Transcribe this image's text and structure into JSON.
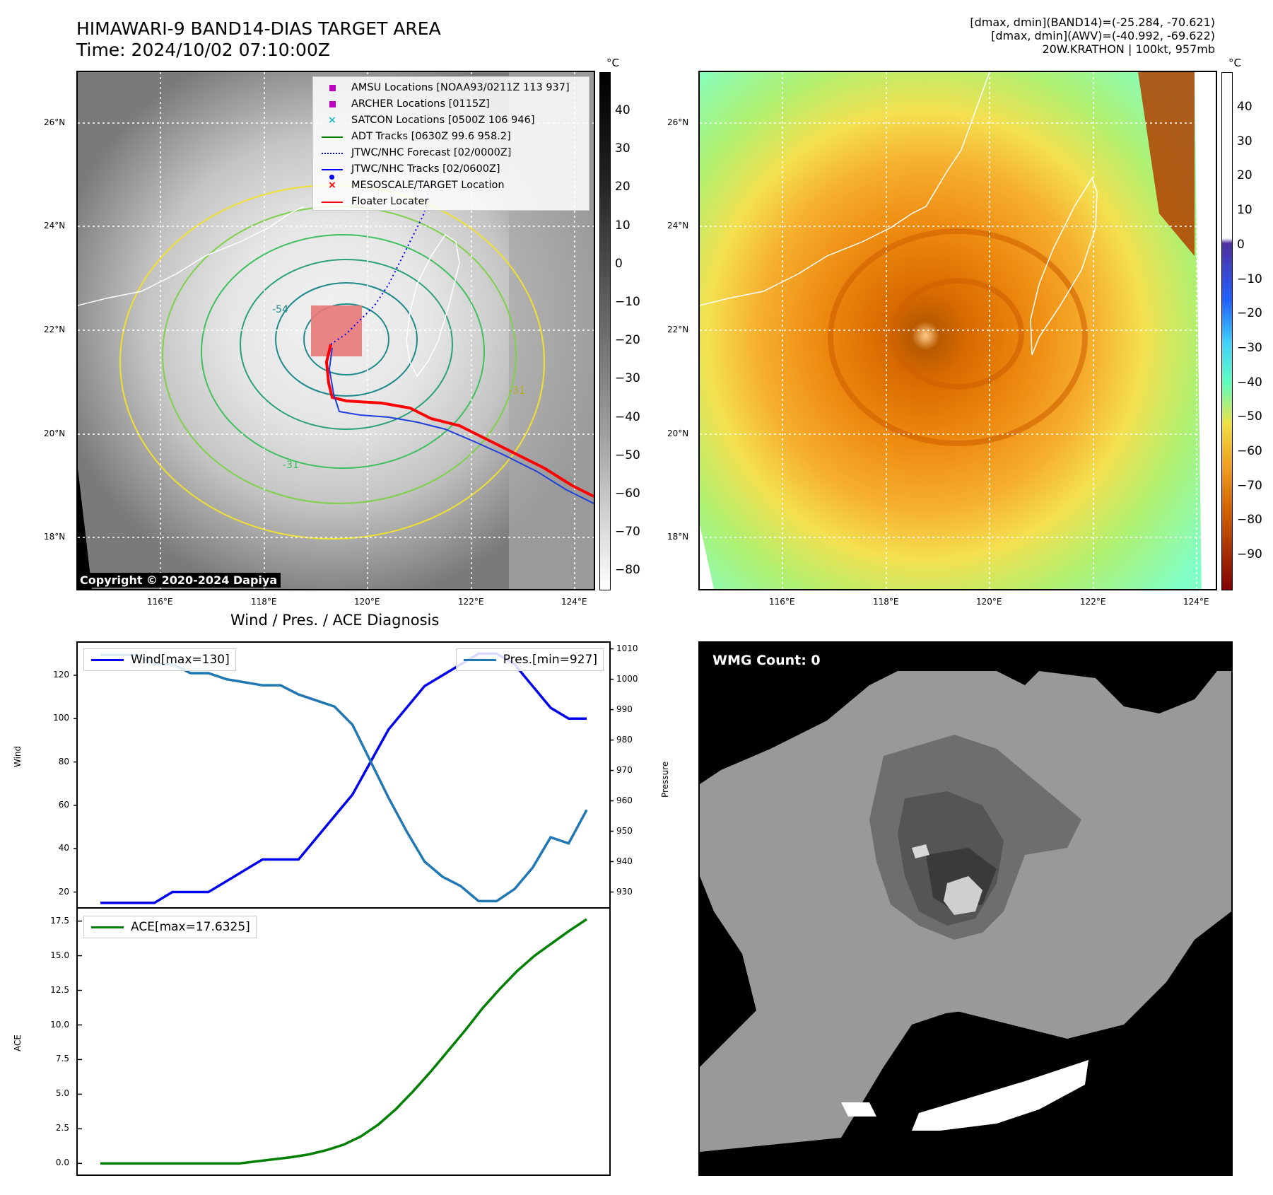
{
  "header": {
    "title_line1": "HIMAWARI-9 BAND14-DIAS TARGET AREA",
    "title_line2": "Time: 2024/10/02 07:10:00Z",
    "info_line1": "[dmax, dmin](BAND14)=(-25.284, -70.621)",
    "info_line2": "[dmax, dmin](AWV)=(-40.992, -69.622)",
    "info_line3": "20W.KRATHON | 100kt, 957mb"
  },
  "map_axes": {
    "lat_labels": [
      "26°N",
      "24°N",
      "22°N",
      "20°N",
      "18°N"
    ],
    "lon_labels": [
      "116°E",
      "118°E",
      "120°E",
      "122°E",
      "124°E"
    ],
    "unit": "°C"
  },
  "ir_panel": {
    "colormap": "grayscale",
    "colorbar_ticks": [
      "40",
      "30",
      "20",
      "10",
      "0",
      "−10",
      "−20",
      "−30",
      "−40",
      "−50",
      "−60",
      "−70",
      "−80"
    ],
    "contour_labels": [
      "-54",
      "-31"
    ],
    "copyright": "Copyright © 2020-2024 Dapiya",
    "legend": [
      {
        "label": "AMSU Locations [NOAA93/0211Z 113 937]",
        "symbol": "square",
        "color": "#c000c0"
      },
      {
        "label": "ARCHER Locations [0115Z]",
        "symbol": "square",
        "color": "#c000c0"
      },
      {
        "label": "SATCON Locations [0500Z 106 946]",
        "symbol": "x",
        "color": "#20b8c0"
      },
      {
        "label": "ADT Tracks [0630Z 99.6 958.2]",
        "symbol": "line",
        "color": "#008000"
      },
      {
        "label": "JTWC/NHC Forecast [02/0000Z]",
        "symbol": "dotted",
        "color": "#0000ff"
      },
      {
        "label": "JTWC/NHC Tracks [02/0600Z]",
        "symbol": "line-dot",
        "color": "#0000ff"
      },
      {
        "label": "MESOSCALE/TARGET Location",
        "symbol": "x",
        "color": "#ff0000"
      },
      {
        "label": "Floater Locater",
        "symbol": "line",
        "color": "#ff0000"
      }
    ]
  },
  "color_panel": {
    "colormap": "thermal",
    "colorbar_ticks": [
      "40",
      "30",
      "20",
      "10",
      "0",
      "−10",
      "−20",
      "−30",
      "−40",
      "−50",
      "−60",
      "−70",
      "−80",
      "−90"
    ]
  },
  "wmg_panel": {
    "label": "WMG Count: 0"
  },
  "chart_data": [
    {
      "type": "line",
      "title": "Wind / Pres. / ACE Diagnosis",
      "ylabel": "Wind",
      "y2label": "Pressure",
      "ylim": [
        13,
        135
      ],
      "y2lim": [
        925,
        1012
      ],
      "yticks": [
        20,
        40,
        60,
        80,
        100,
        120
      ],
      "y2ticks": [
        930,
        940,
        950,
        960,
        970,
        980,
        990,
        1000,
        1010
      ],
      "series": [
        {
          "name": "Wind[max=130]",
          "color": "#0000ee",
          "axis": "left",
          "values": [
            15,
            15,
            15,
            15,
            20,
            20,
            20,
            25,
            30,
            35,
            35,
            35,
            45,
            55,
            65,
            80,
            95,
            105,
            115,
            120,
            125,
            130,
            130,
            125,
            115,
            105,
            100,
            100
          ]
        },
        {
          "name": "Pres.[min=927]",
          "color": "#1f77b4",
          "axis": "right",
          "values": [
            1008,
            1008,
            1008,
            1005,
            1005,
            1002,
            1002,
            1000,
            999,
            998,
            998,
            995,
            993,
            991,
            985,
            973,
            961,
            950,
            940,
            935,
            932,
            927,
            927,
            931,
            938,
            948,
            946,
            957
          ]
        }
      ]
    },
    {
      "type": "line",
      "ylabel": "ACE",
      "ylim": [
        -0.8,
        18.4
      ],
      "yticks": [
        "0.0",
        "2.5",
        "5.0",
        "7.5",
        "10.0",
        "12.5",
        "15.0",
        "17.5"
      ],
      "series": [
        {
          "name": "ACE[max=17.6325]",
          "color": "#008000",
          "values": [
            0,
            0,
            0,
            0,
            0,
            0,
            0,
            0,
            0,
            0.15,
            0.3,
            0.45,
            0.65,
            0.95,
            1.35,
            1.95,
            2.8,
            3.9,
            5.2,
            6.6,
            8.1,
            9.6,
            11.2,
            12.6,
            13.9,
            15.0,
            15.9,
            16.8,
            17.6325
          ]
        }
      ]
    }
  ]
}
